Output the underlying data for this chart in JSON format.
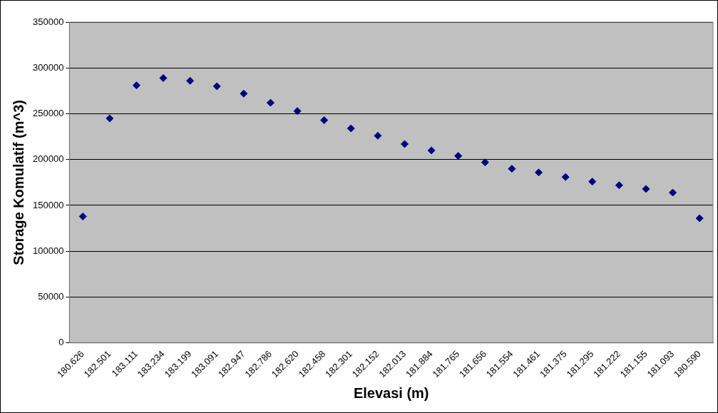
{
  "chart_data": {
    "type": "scatter",
    "xlabel": "Elevasi (m)",
    "ylabel": "Storage Komulatif (m^3)",
    "categories": [
      "180.626",
      "182.501",
      "183.111",
      "183.234",
      "183.199",
      "183.091",
      "182.947",
      "182.786",
      "182.620",
      "182.458",
      "182.301",
      "182.152",
      "182.013",
      "181.884",
      "181.765",
      "181.656",
      "181.554",
      "181.461",
      "181.375",
      "181.295",
      "181.222",
      "181.155",
      "181.093",
      "180.590"
    ],
    "values": [
      138000,
      245000,
      281000,
      289000,
      286000,
      280000,
      272000,
      262000,
      253000,
      243000,
      234000,
      226000,
      217000,
      210000,
      204000,
      197000,
      190000,
      186000,
      181000,
      176000,
      172000,
      168000,
      164000,
      136000
    ],
    "color": "#000080",
    "marker": "diamond",
    "ylim": [
      0,
      350000
    ],
    "yticks": [
      0,
      50000,
      100000,
      150000,
      200000,
      250000,
      300000,
      350000
    ],
    "grid": "y",
    "legend": false
  }
}
